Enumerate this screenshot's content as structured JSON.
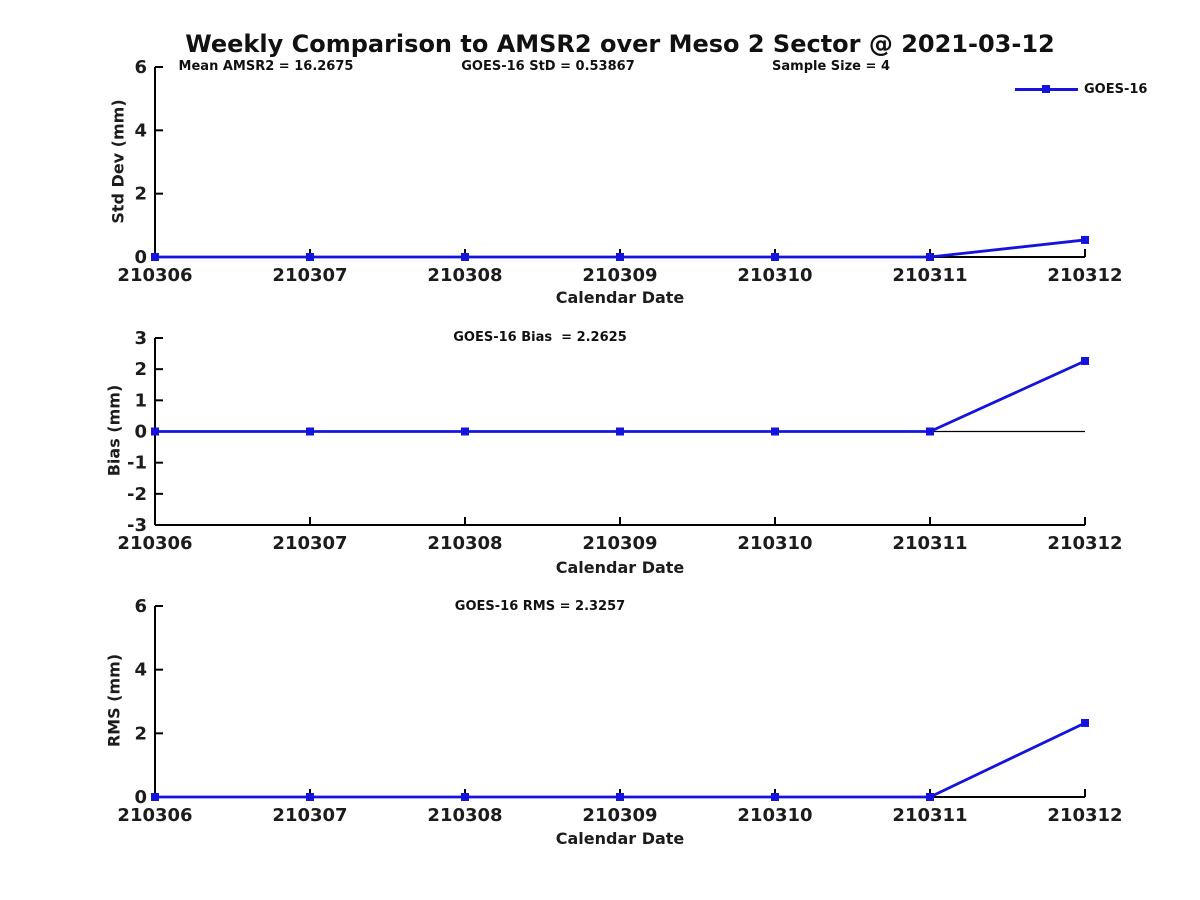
{
  "page": {
    "title": "Weekly Comparison to AMSR2 over Meso 2 Sector @ 2021-03-12"
  },
  "header_stats": {
    "mean_amsr2": "Mean AMSR2 = 16.2675",
    "sample_size": "Sample Size = 4"
  },
  "legend": {
    "label": "GOES-16",
    "position": "top-right"
  },
  "colors": {
    "line": "#1414dd",
    "marker": "#1414dd",
    "axis": "#000000",
    "text": "#1c1c1c",
    "background": "#ffffff"
  },
  "chart_data": [
    {
      "type": "line",
      "name": "std-dev-vs-date",
      "annotation": "GOES-16 StD = 0.53867",
      "series": [
        {
          "name": "GOES-16",
          "values": [
            0,
            0,
            0,
            0,
            0,
            0,
            0.53867
          ]
        }
      ],
      "categories": [
        "210306",
        "210307",
        "210308",
        "210309",
        "210310",
        "210311",
        "210312"
      ],
      "xlabel": "Calendar Date",
      "ylabel": "Std Dev (mm)",
      "ylim": [
        0,
        6
      ],
      "yticks": [
        0,
        2,
        4,
        6
      ],
      "grid": false,
      "zero_line": false,
      "marker": "square"
    },
    {
      "type": "line",
      "name": "bias-vs-date",
      "annotation": "GOES-16 Bias  = 2.2625",
      "series": [
        {
          "name": "GOES-16",
          "values": [
            0,
            0,
            0,
            0,
            0,
            0,
            2.2625
          ]
        }
      ],
      "categories": [
        "210306",
        "210307",
        "210308",
        "210309",
        "210310",
        "210311",
        "210312"
      ],
      "xlabel": "Calendar Date",
      "ylabel": "Bias (mm)",
      "ylim": [
        -3,
        3
      ],
      "yticks": [
        -3,
        -2,
        -1,
        0,
        1,
        2,
        3
      ],
      "grid": false,
      "zero_line": true,
      "marker": "square"
    },
    {
      "type": "line",
      "name": "rms-vs-date",
      "annotation": "GOES-16 RMS = 2.3257",
      "series": [
        {
          "name": "GOES-16",
          "values": [
            0,
            0,
            0,
            0,
            0,
            0,
            2.3257
          ]
        }
      ],
      "categories": [
        "210306",
        "210307",
        "210308",
        "210309",
        "210310",
        "210311",
        "210312"
      ],
      "xlabel": "Calendar Date",
      "ylabel": "RMS (mm)",
      "ylim": [
        0,
        6
      ],
      "yticks": [
        0,
        2,
        4,
        6
      ],
      "grid": false,
      "zero_line": false,
      "marker": "square"
    }
  ]
}
